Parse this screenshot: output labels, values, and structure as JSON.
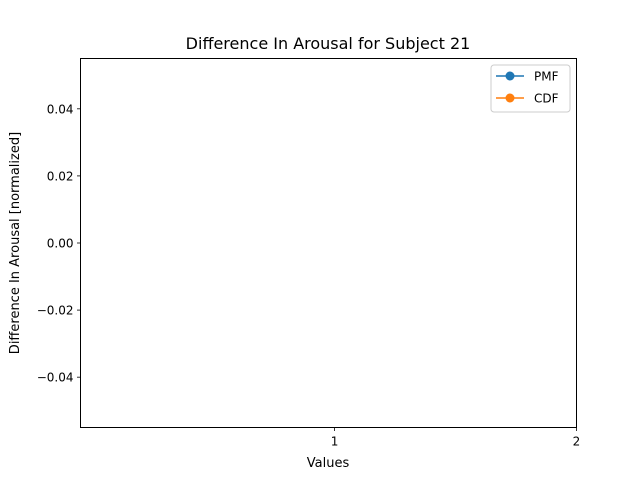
{
  "chart_data": {
    "type": "line",
    "title": "Difference In Arousal for Subject 21",
    "xlabel": "Values",
    "ylabel": "Difference In Arousal [normalized]",
    "xlim": [
      -0.05,
      2.0
    ],
    "ylim": [
      -0.055,
      0.055
    ],
    "xticks": [
      1,
      2
    ],
    "xtick_labels": [
      "1",
      "2"
    ],
    "yticks": [
      -0.04,
      -0.02,
      0.0,
      0.02,
      0.04
    ],
    "ytick_labels": [
      "−0.04",
      "−0.02",
      "0.00",
      "0.02",
      "0.04"
    ],
    "grid": false,
    "legend_position": "top-right",
    "series": [
      {
        "name": "PMF",
        "color": "#1f77b4",
        "marker": "circle",
        "x": [],
        "y": []
      },
      {
        "name": "CDF",
        "color": "#ff7f0e",
        "marker": "circle",
        "x": [],
        "y": []
      }
    ]
  }
}
